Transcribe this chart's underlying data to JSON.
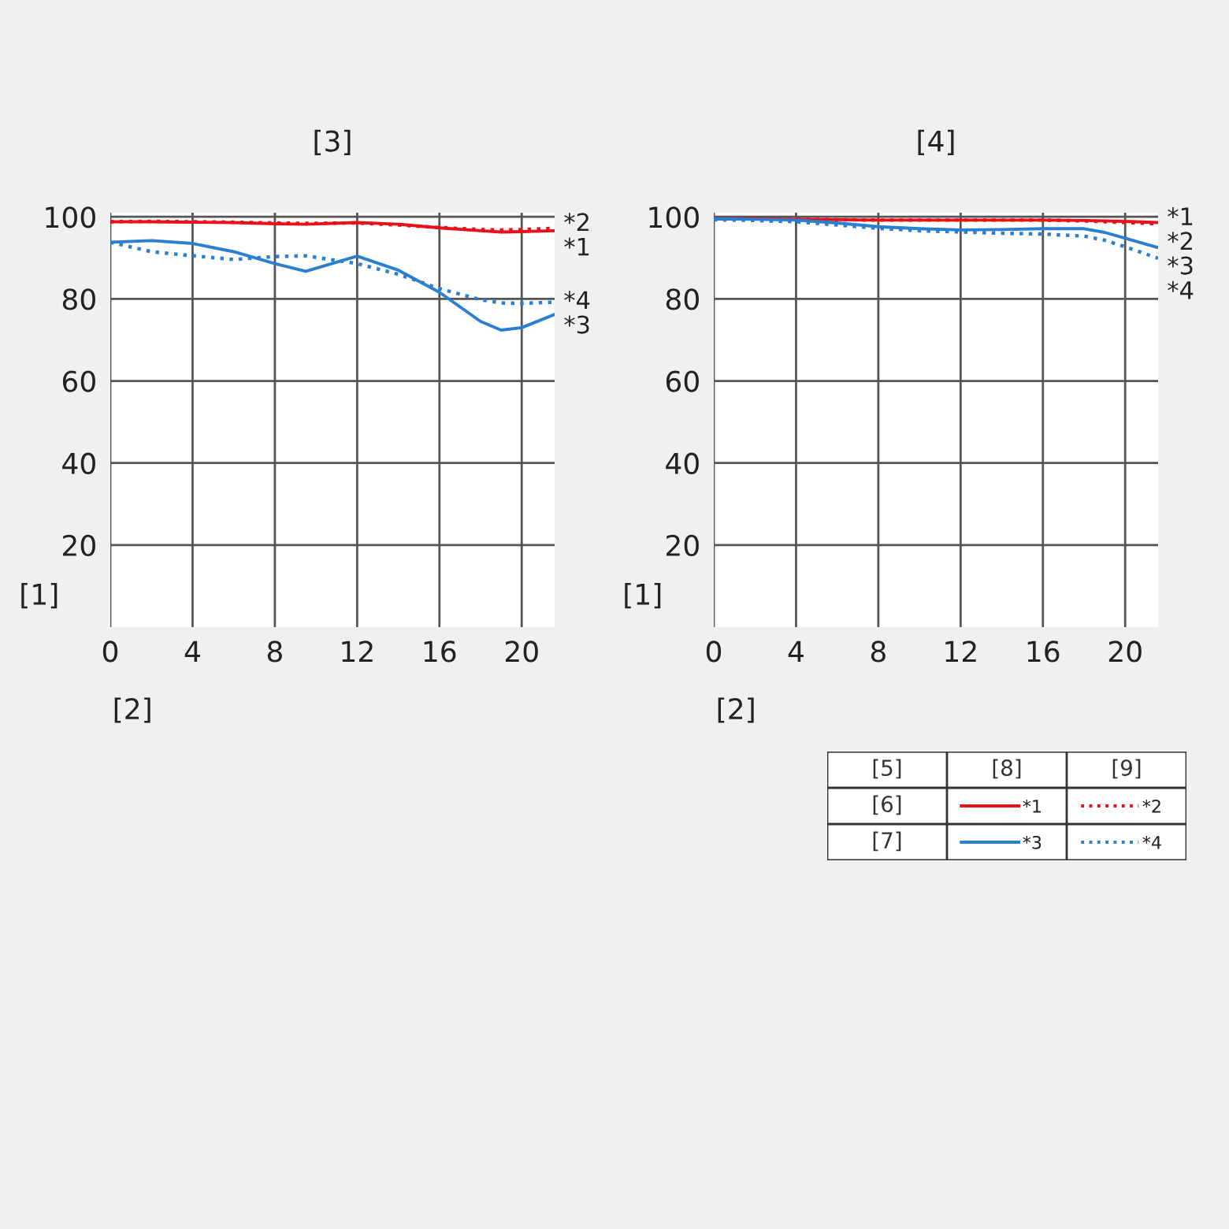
{
  "chart_data": [
    {
      "type": "line",
      "title": "[3]",
      "xlabel": "[2]",
      "ylabel": "[1]",
      "xlim": [
        0,
        21.6
      ],
      "ylim": [
        0,
        101
      ],
      "xticks": [
        0,
        4,
        8,
        12,
        16,
        20
      ],
      "yticks": [
        20,
        40,
        60,
        80,
        100
      ],
      "grid": true,
      "legend": "bottom right",
      "annotations": [
        "[5]",
        "[6]",
        "[7]",
        "[8]",
        "[9]"
      ],
      "x": [
        0,
        2,
        4,
        6,
        8,
        9.5,
        12,
        14,
        16,
        18,
        19,
        20,
        21.6
      ],
      "series": [
        {
          "name": "*1",
          "color": "#e8121b",
          "line_style": "solid",
          "values": [
            98.8,
            98.8,
            98.7,
            98.6,
            98.3,
            98.2,
            98.6,
            98.2,
            97.3,
            96.6,
            96.3,
            96.4,
            96.6
          ]
        },
        {
          "name": "*2",
          "color": "#e8121b",
          "line_style": "dotted",
          "values": [
            98.8,
            98.9,
            98.8,
            98.7,
            98.5,
            98.4,
            98.5,
            98.0,
            97.4,
            96.9,
            96.8,
            96.9,
            97.2
          ]
        },
        {
          "name": "*3",
          "color": "#2a7fd0",
          "line_style": "solid",
          "values": [
            93.8,
            94.2,
            93.5,
            91.5,
            88.6,
            86.7,
            90.4,
            87.0,
            81.6,
            74.5,
            72.4,
            73.0,
            76.2
          ]
        },
        {
          "name": "*4",
          "color": "#2a7fd0",
          "line_style": "dotted",
          "values": [
            93.8,
            91.5,
            90.5,
            89.6,
            90.3,
            90.5,
            88.6,
            86.0,
            82.5,
            79.8,
            79.0,
            78.9,
            79.2
          ]
        }
      ]
    },
    {
      "type": "line",
      "title": "[4]",
      "xlabel": "[2]",
      "ylabel": "[1]",
      "xlim": [
        0,
        21.6
      ],
      "ylim": [
        0,
        101
      ],
      "xticks": [
        0,
        4,
        8,
        12,
        16,
        20
      ],
      "yticks": [
        20,
        40,
        60,
        80,
        100
      ],
      "grid": true,
      "x": [
        0,
        2,
        4,
        6,
        8,
        10,
        12,
        14,
        16,
        18,
        19,
        20,
        21.6
      ],
      "series": [
        {
          "name": "*1",
          "color": "#e8121b",
          "line_style": "solid",
          "values": [
            99.5,
            99.5,
            99.4,
            99.3,
            99.2,
            99.2,
            99.2,
            99.2,
            99.2,
            99.1,
            99.0,
            98.9,
            98.6
          ]
        },
        {
          "name": "*2",
          "color": "#e8121b",
          "line_style": "dotted",
          "values": [
            99.5,
            99.5,
            99.4,
            99.3,
            99.2,
            99.2,
            99.2,
            99.2,
            99.2,
            99.0,
            98.8,
            98.6,
            98.3
          ]
        },
        {
          "name": "*3",
          "color": "#2a7fd0",
          "line_style": "solid",
          "values": [
            99.5,
            99.4,
            99.2,
            98.5,
            97.6,
            97.1,
            96.8,
            96.9,
            97.1,
            97.1,
            96.2,
            94.8,
            92.5
          ]
        },
        {
          "name": "*4",
          "color": "#2a7fd0",
          "line_style": "dotted",
          "values": [
            99.3,
            99.1,
            98.8,
            98.0,
            97.2,
            96.6,
            96.3,
            96.0,
            95.8,
            95.3,
            94.3,
            92.7,
            89.9
          ]
        }
      ]
    }
  ]
}
